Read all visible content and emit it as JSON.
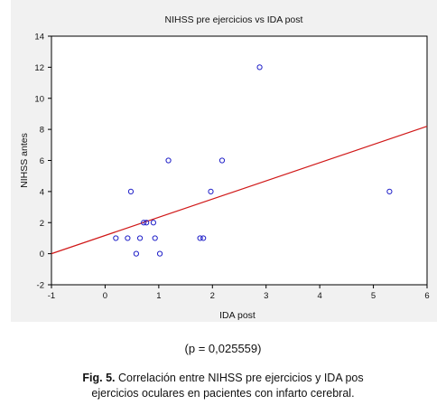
{
  "chart_data": {
    "type": "scatter",
    "title": "NIHSS pre ejercicios vs IDA post",
    "xlabel": "IDA post",
    "ylabel": "NIHSS antes",
    "xlim": [
      -1,
      6
    ],
    "ylim": [
      -2,
      14
    ],
    "xticks": [
      "-1",
      "0",
      "1",
      "2",
      "3",
      "4",
      "5",
      "6"
    ],
    "yticks": [
      "-2",
      "0",
      "2",
      "4",
      "6",
      "8",
      "10",
      "12",
      "14"
    ],
    "grid": false,
    "points": [
      {
        "x": 0.2,
        "y": 1
      },
      {
        "x": 0.42,
        "y": 1
      },
      {
        "x": 0.48,
        "y": 4
      },
      {
        "x": 0.58,
        "y": 0
      },
      {
        "x": 0.65,
        "y": 1
      },
      {
        "x": 0.72,
        "y": 2
      },
      {
        "x": 0.77,
        "y": 2
      },
      {
        "x": 0.9,
        "y": 2
      },
      {
        "x": 0.93,
        "y": 1
      },
      {
        "x": 1.02,
        "y": 0
      },
      {
        "x": 1.18,
        "y": 6
      },
      {
        "x": 1.77,
        "y": 1
      },
      {
        "x": 1.83,
        "y": 1
      },
      {
        "x": 1.97,
        "y": 4
      },
      {
        "x": 2.18,
        "y": 6
      },
      {
        "x": 2.88,
        "y": 12
      },
      {
        "x": 5.3,
        "y": 4
      }
    ],
    "regression_line": {
      "x": [
        -1,
        6
      ],
      "y": [
        0,
        8.2
      ]
    },
    "point_color": "#2020c8",
    "line_color": "#d01818"
  },
  "pvalue_text": "(p = 0,025559)",
  "caption": {
    "label": "Fig. 5.",
    "line1": " Correlación entre NIHSS pre ejercicios y IDA pos",
    "line2": "ejercicios oculares en pacientes con infarto cerebral."
  }
}
